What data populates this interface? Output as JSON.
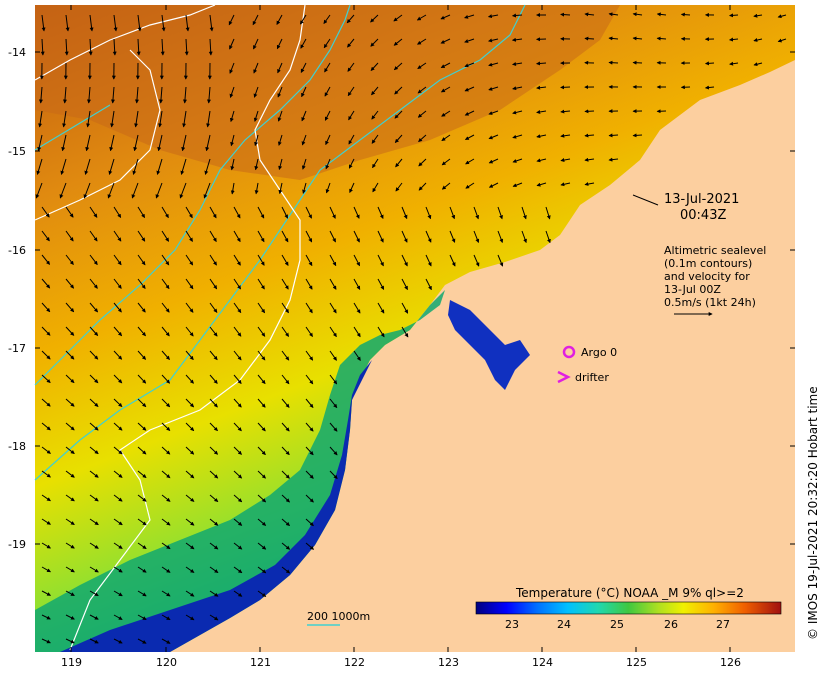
{
  "map": {
    "lat_ticks": [
      "-14",
      "-15",
      "-16",
      "-17",
      "-18",
      "-19"
    ],
    "lon_ticks": [
      "119",
      "120",
      "121",
      "122",
      "123",
      "124",
      "125",
      "126"
    ],
    "lat_range": [
      -20.1,
      -13.5
    ],
    "lon_range": [
      118.6,
      126.7
    ]
  },
  "annotation": {
    "date_line1": "13-Jul-2021",
    "date_line2": "00:43Z",
    "altimetry_lines": [
      "Altimetric sealevel",
      "(0.1m contours)",
      "and velocity for",
      "13-Jul 00Z",
      "0.5m/s (1kt 24h)"
    ]
  },
  "legend": {
    "argo_label": "Argo 0",
    "drifter_label": "drifter",
    "argo_color": "#e020e0",
    "drifter_color": "#e020e0"
  },
  "colorbar": {
    "title": "Temperature (°C) NOAA _M 9% ql>=2",
    "ticks": [
      "23",
      "24",
      "25",
      "26",
      "27"
    ],
    "range": [
      22.3,
      27.8
    ],
    "colors": [
      "#00007f",
      "#0000ff",
      "#0080ff",
      "#00d0ff",
      "#20e0a0",
      "#30c060",
      "#40d040",
      "#a0e020",
      "#e8f000",
      "#ffc000",
      "#ff8000",
      "#e05000",
      "#a01010"
    ]
  },
  "scale": {
    "label": "200  1000m",
    "color": "#40d0d0"
  },
  "credit": "© IMOS 19-Jul-2021 20:32:20 Hobart time",
  "colors": {
    "land": "#fccf9f",
    "contour_white": "#ffffff",
    "contour_cyan": "#40d0d0",
    "arrow": "#000000"
  }
}
